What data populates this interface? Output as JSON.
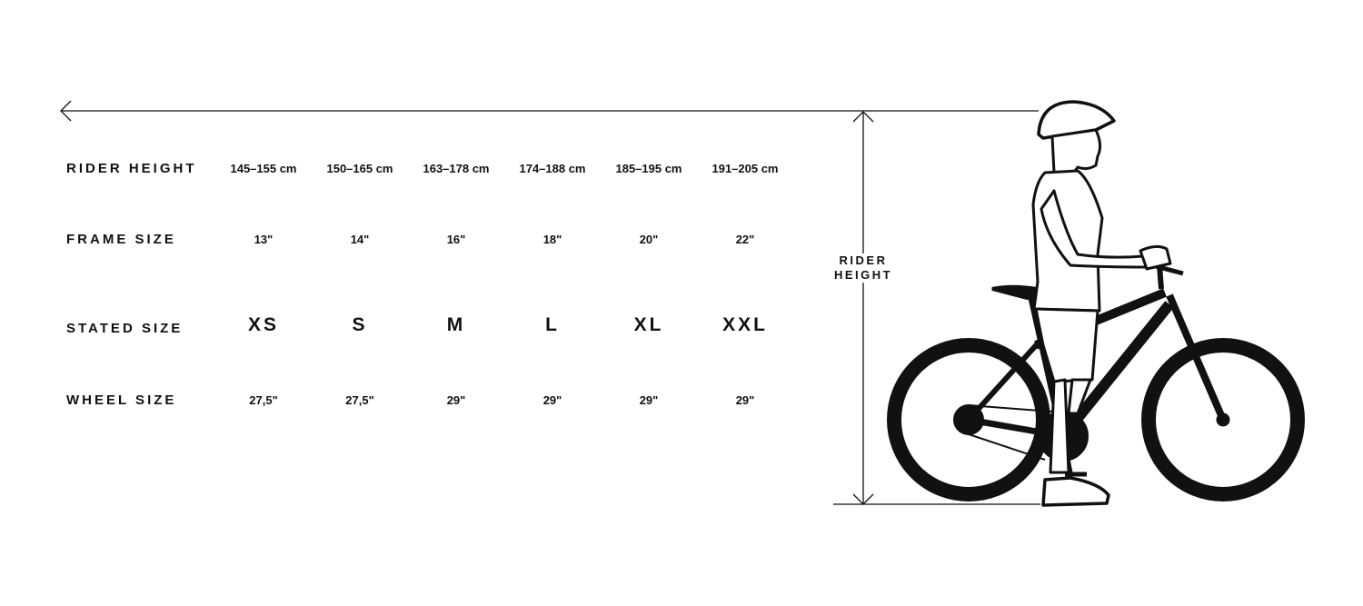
{
  "rows": [
    {
      "label": "RIDER HEIGHT",
      "values": [
        "145–155 cm",
        "150–165 cm",
        "163–178 cm",
        "174–188 cm",
        "185–195 cm",
        "191–205 cm"
      ]
    },
    {
      "label": "FRAME SIZE",
      "values": [
        "13\"",
        "14\"",
        "16\"",
        "18\"",
        "20\"",
        "22\""
      ]
    },
    {
      "label": "STATED SIZE",
      "values": [
        "XS",
        "S",
        "M",
        "L",
        "XL",
        "XXL"
      ]
    },
    {
      "label": "WHEEL SIZE",
      "values": [
        "27,5\"",
        "27,5\"",
        "29\"",
        "29\"",
        "29\"",
        "29\""
      ]
    }
  ],
  "diagram": {
    "rider_height_line1": "RIDER",
    "rider_height_line2": "HEIGHT"
  }
}
